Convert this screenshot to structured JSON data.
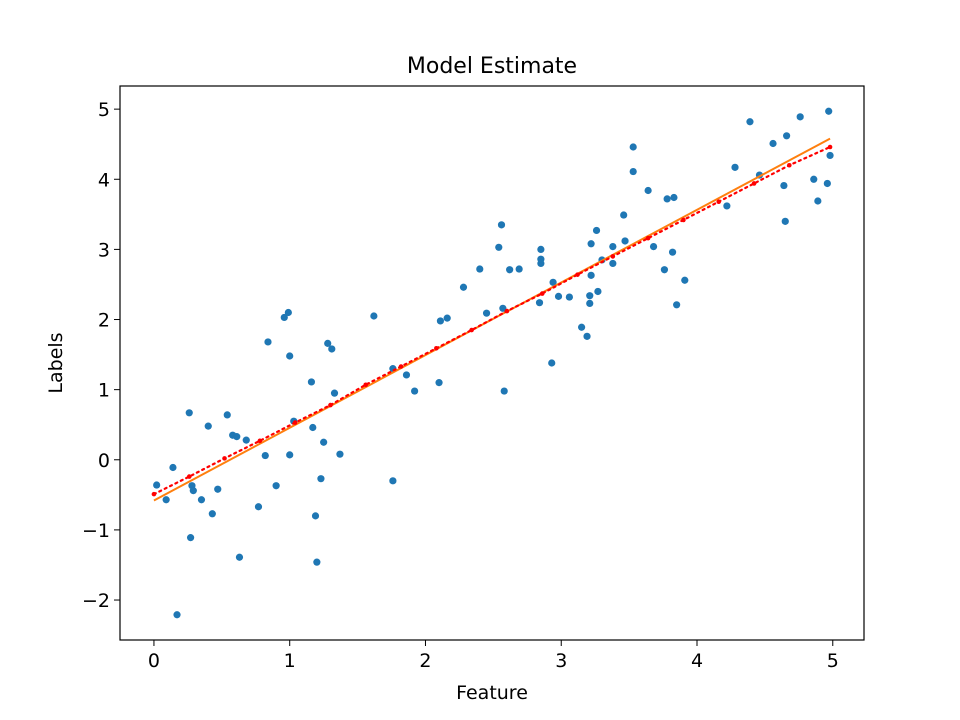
{
  "chart_data": {
    "type": "scatter",
    "title": "Model Estimate",
    "xlabel": "Feature",
    "ylabel": "Labels",
    "xlim": [
      -0.25,
      5.23
    ],
    "ylim": [
      -2.57,
      5.33
    ],
    "xticks": [
      0,
      1,
      2,
      3,
      4,
      5
    ],
    "yticks": [
      -2,
      -1,
      0,
      1,
      2,
      3,
      4,
      5
    ],
    "xtick_labels": [
      "0",
      "1",
      "2",
      "3",
      "4",
      "5"
    ],
    "ytick_labels": [
      "−2",
      "−1",
      "0",
      "1",
      "2",
      "3",
      "4",
      "5"
    ],
    "grid": false,
    "legend": "none",
    "series": [
      {
        "kind": "scatter",
        "color": "#1f77b4",
        "points": [
          [
            0.02,
            -0.36
          ],
          [
            0.09,
            -0.57
          ],
          [
            0.14,
            -0.11
          ],
          [
            0.17,
            -2.21
          ],
          [
            0.26,
            0.67
          ],
          [
            0.27,
            -1.11
          ],
          [
            0.28,
            -0.37
          ],
          [
            0.29,
            -0.44
          ],
          [
            0.35,
            -0.57
          ],
          [
            0.4,
            0.48
          ],
          [
            0.43,
            -0.77
          ],
          [
            0.47,
            -0.42
          ],
          [
            0.54,
            0.64
          ],
          [
            0.58,
            0.35
          ],
          [
            0.61,
            0.33
          ],
          [
            0.63,
            -1.39
          ],
          [
            0.68,
            0.28
          ],
          [
            0.77,
            -0.67
          ],
          [
            0.82,
            0.06
          ],
          [
            0.84,
            1.68
          ],
          [
            0.9,
            -0.37
          ],
          [
            0.96,
            2.03
          ],
          [
            0.99,
            2.1
          ],
          [
            1.0,
            0.07
          ],
          [
            1.0,
            1.48
          ],
          [
            1.03,
            0.55
          ],
          [
            1.16,
            1.11
          ],
          [
            1.17,
            0.46
          ],
          [
            1.19,
            -0.8
          ],
          [
            1.2,
            -1.46
          ],
          [
            1.23,
            -0.27
          ],
          [
            1.25,
            0.25
          ],
          [
            1.28,
            1.66
          ],
          [
            1.31,
            1.58
          ],
          [
            1.33,
            0.95
          ],
          [
            1.37,
            0.08
          ],
          [
            1.62,
            2.05
          ],
          [
            1.76,
            1.3
          ],
          [
            1.76,
            -0.3
          ],
          [
            1.86,
            1.21
          ],
          [
            1.92,
            0.98
          ],
          [
            2.1,
            1.1
          ],
          [
            2.11,
            1.98
          ],
          [
            2.16,
            2.02
          ],
          [
            2.28,
            2.46
          ],
          [
            2.4,
            2.72
          ],
          [
            2.45,
            2.09
          ],
          [
            2.54,
            3.03
          ],
          [
            2.56,
            3.35
          ],
          [
            2.57,
            2.16
          ],
          [
            2.58,
            0.98
          ],
          [
            2.62,
            2.71
          ],
          [
            2.69,
            2.72
          ],
          [
            2.84,
            2.24
          ],
          [
            2.85,
            2.8
          ],
          [
            2.85,
            2.86
          ],
          [
            2.85,
            3.0
          ],
          [
            2.93,
            1.38
          ],
          [
            2.94,
            2.53
          ],
          [
            2.98,
            2.33
          ],
          [
            3.06,
            2.32
          ],
          [
            3.15,
            1.89
          ],
          [
            3.19,
            1.76
          ],
          [
            3.21,
            2.34
          ],
          [
            3.21,
            2.23
          ],
          [
            3.22,
            3.08
          ],
          [
            3.22,
            2.63
          ],
          [
            3.26,
            3.27
          ],
          [
            3.27,
            2.4
          ],
          [
            3.3,
            2.85
          ],
          [
            3.38,
            3.04
          ],
          [
            3.38,
            2.8
          ],
          [
            3.46,
            3.49
          ],
          [
            3.47,
            3.12
          ],
          [
            3.53,
            4.46
          ],
          [
            3.53,
            4.11
          ],
          [
            3.64,
            3.84
          ],
          [
            3.68,
            3.04
          ],
          [
            3.76,
            2.71
          ],
          [
            3.78,
            3.72
          ],
          [
            3.82,
            2.96
          ],
          [
            3.83,
            3.74
          ],
          [
            3.85,
            2.21
          ],
          [
            3.91,
            2.56
          ],
          [
            4.22,
            3.62
          ],
          [
            4.28,
            4.17
          ],
          [
            4.39,
            4.82
          ],
          [
            4.46,
            4.06
          ],
          [
            4.56,
            4.51
          ],
          [
            4.64,
            3.91
          ],
          [
            4.65,
            3.4
          ],
          [
            4.66,
            4.62
          ],
          [
            4.76,
            4.89
          ],
          [
            4.86,
            4.0
          ],
          [
            4.89,
            3.69
          ],
          [
            4.96,
            3.94
          ],
          [
            4.97,
            4.97
          ],
          [
            4.98,
            4.34
          ]
        ]
      },
      {
        "kind": "line",
        "color": "#ff7f0e",
        "style": "solid",
        "x": [
          0.0,
          4.98
        ],
        "y": [
          -0.58,
          4.58
        ]
      },
      {
        "kind": "line-markers",
        "color": "#ff0000",
        "style": "dotted",
        "x": [
          0.0,
          0.26,
          0.52,
          0.78,
          1.04,
          1.3,
          1.56,
          1.82,
          2.08,
          2.34,
          2.6,
          2.86,
          3.12,
          3.38,
          3.64,
          3.9,
          4.16,
          4.42,
          4.68,
          4.98
        ],
        "y": [
          -0.49,
          -0.24,
          0.02,
          0.27,
          0.53,
          0.78,
          1.07,
          1.33,
          1.59,
          1.85,
          2.12,
          2.37,
          2.64,
          2.9,
          3.16,
          3.42,
          3.68,
          3.94,
          4.2,
          4.46
        ]
      }
    ]
  }
}
